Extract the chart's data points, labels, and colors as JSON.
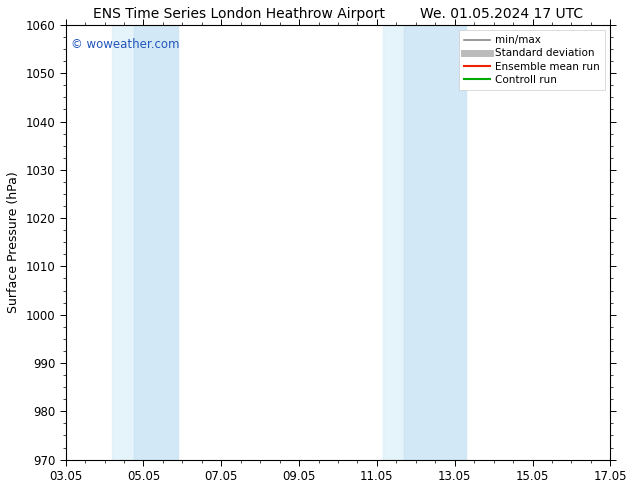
{
  "title_left": "ENS Time Series London Heathrow Airport",
  "title_right": "We. 01.05.2024 17 UTC",
  "ylabel": "Surface Pressure (hPa)",
  "ylim": [
    970,
    1060
  ],
  "yticks": [
    970,
    980,
    990,
    1000,
    1010,
    1020,
    1030,
    1040,
    1050,
    1060
  ],
  "xlim_start": 0,
  "xlim_end": 14,
  "xtick_labels": [
    "03.05",
    "05.05",
    "07.05",
    "09.05",
    "11.05",
    "13.05",
    "15.05",
    "17.05"
  ],
  "xtick_positions": [
    0,
    2,
    4,
    6,
    8,
    10,
    12,
    14
  ],
  "blue_bands": [
    {
      "xmin": 1.5,
      "xmax": 2.0,
      "alpha": 0.35
    },
    {
      "xmin": 2.0,
      "xmax": 2.8,
      "alpha": 0.55
    },
    {
      "xmin": 8.5,
      "xmax": 9.0,
      "alpha": 0.35
    },
    {
      "xmin": 9.0,
      "xmax": 10.0,
      "alpha": 0.55
    }
  ],
  "band_color": "#cce5f5",
  "watermark": "© woweather.com",
  "watermark_color": "#2255bb",
  "legend_items": [
    {
      "label": "min/max",
      "color": "#888888",
      "lw": 1.2
    },
    {
      "label": "Standard deviation",
      "color": "#bbbbbb",
      "lw": 5
    },
    {
      "label": "Ensemble mean run",
      "color": "#ee2200",
      "lw": 1.5
    },
    {
      "label": "Controll run",
      "color": "#00aa00",
      "lw": 1.5
    }
  ],
  "bg_color": "#ffffff",
  "title_fontsize": 10,
  "tick_fontsize": 8.5,
  "ylabel_fontsize": 9,
  "legend_fontsize": 7.5
}
